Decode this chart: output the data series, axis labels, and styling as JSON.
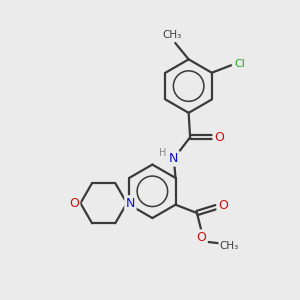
{
  "bg_color": "#ebebeb",
  "bond_color": "#3a3a3a",
  "bond_width": 1.6,
  "N_color": "#1010cc",
  "O_color": "#cc1010",
  "Cl_color": "#22aa22",
  "H_color": "#888888",
  "fig_size": [
    3.0,
    3.0
  ],
  "dpi": 100,
  "xlim": [
    0,
    10
  ],
  "ylim": [
    0,
    10
  ]
}
